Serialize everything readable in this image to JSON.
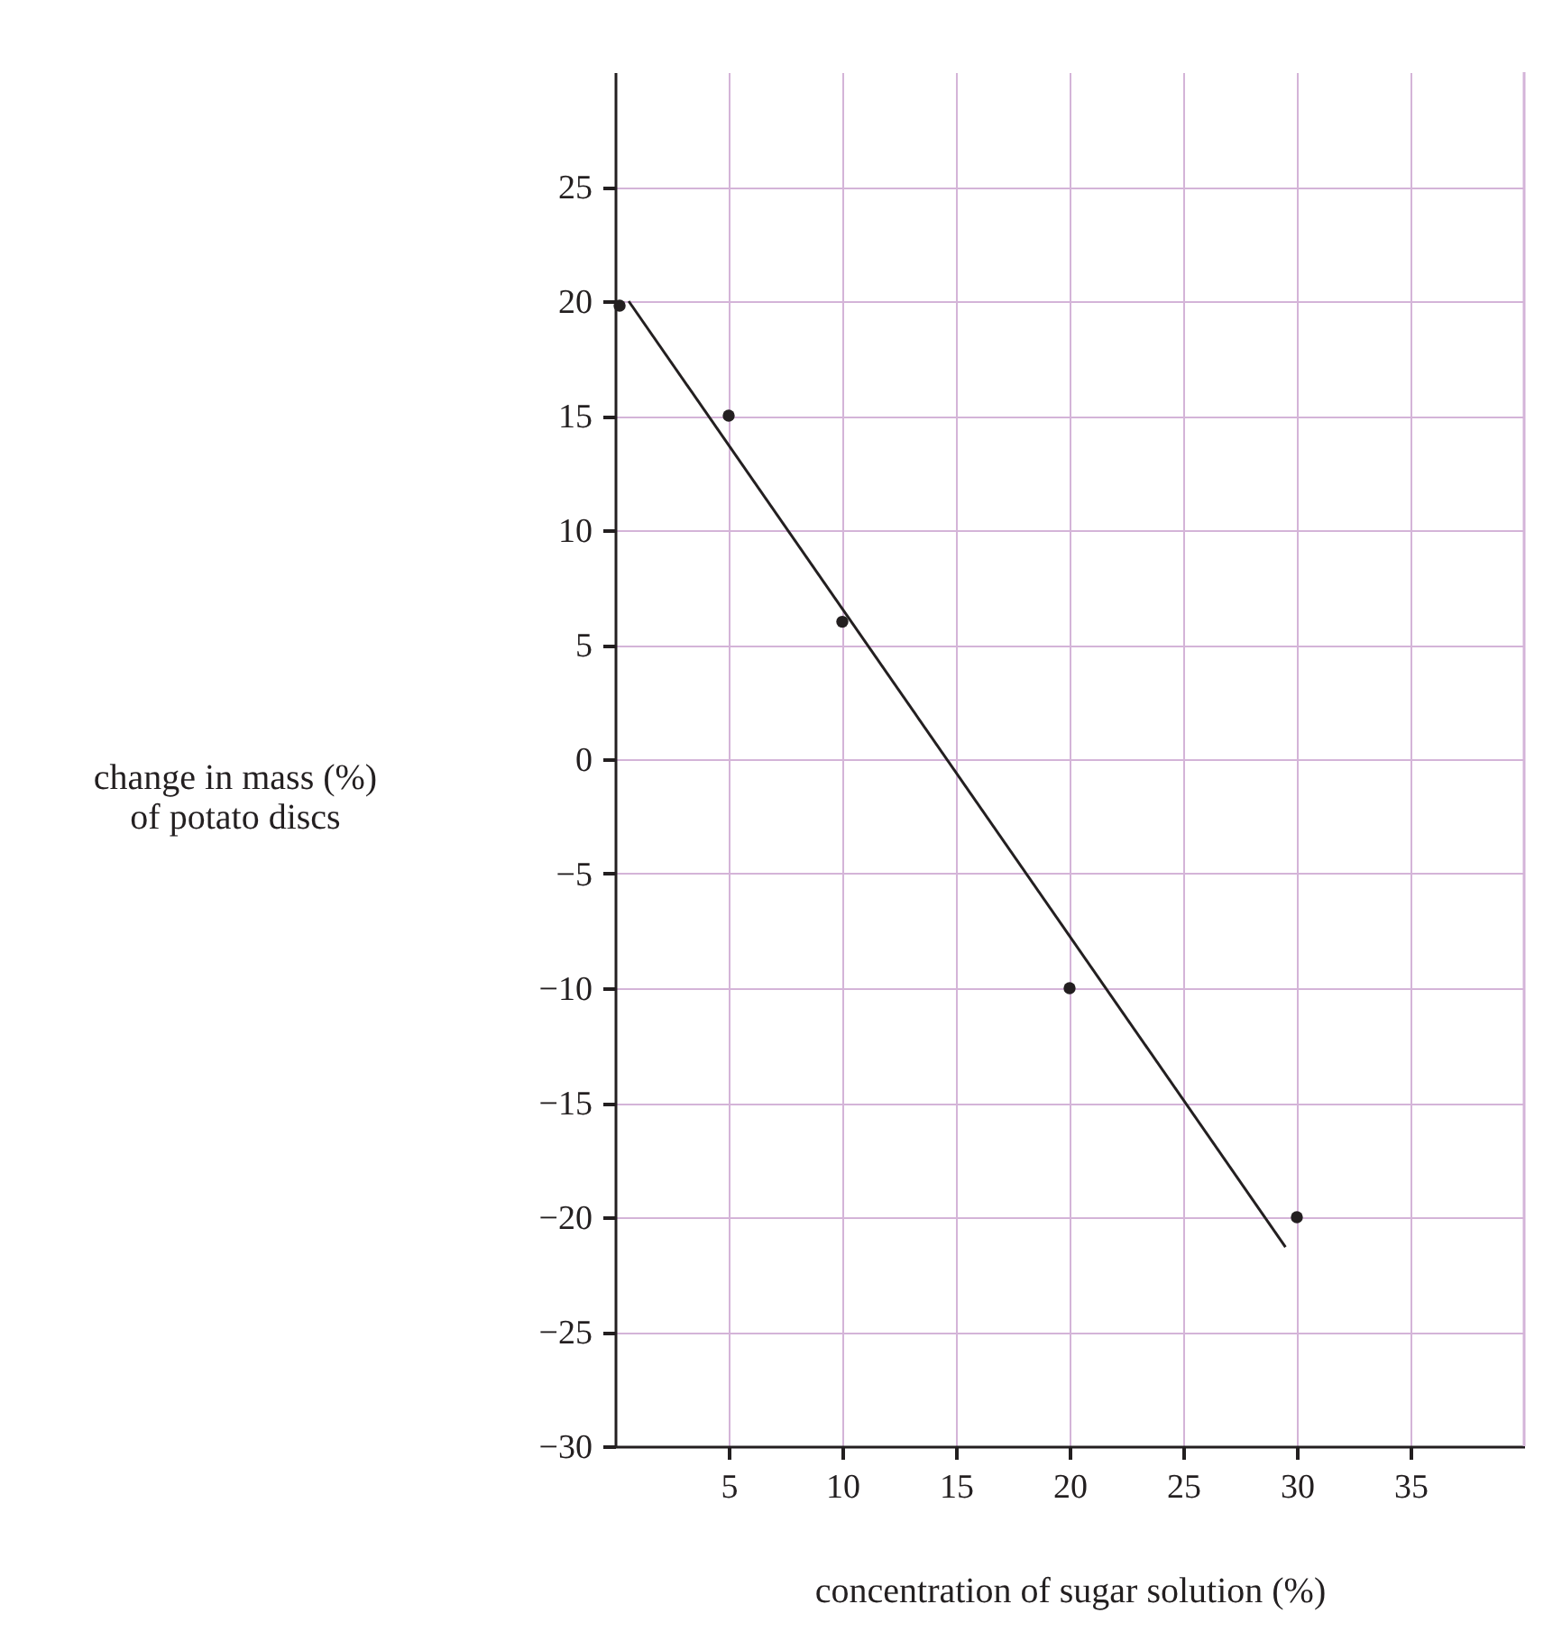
{
  "chart_data": {
    "type": "scatter",
    "xlabel": "concentration of sugar solution (%)",
    "ylabel": "change in mass (%)\nof potato discs",
    "series": [
      {
        "color": "#231f20",
        "x": [
          0.2,
          5,
          10,
          20,
          30
        ],
        "values": [
          19.8,
          15,
          6,
          -10,
          -20
        ]
      },
      {
        "type": "line",
        "marker": "none",
        "line_style": "solid",
        "color": "#231f20",
        "x": [
          0.6,
          29.5
        ],
        "values": [
          20,
          -21.3
        ]
      }
    ],
    "xlim": [
      0,
      40
    ],
    "xticks": [
      5,
      10,
      15,
      20,
      25,
      30,
      35
    ],
    "ylim": [
      -30,
      30
    ],
    "yticks": [
      {
        "value": -30,
        "label": "−30"
      },
      {
        "value": -25,
        "label": "−25"
      },
      {
        "value": -20,
        "label": "−20"
      },
      {
        "value": -15,
        "label": "−15"
      },
      {
        "value": -10,
        "label": "−10"
      },
      {
        "value": -5,
        "label": "−5"
      },
      0,
      5,
      10,
      15,
      20,
      25
    ],
    "grid": true,
    "marker": "circle"
  }
}
